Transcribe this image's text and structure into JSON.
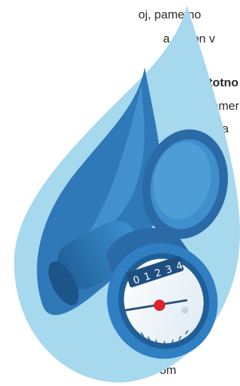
{
  "text_fragments": {
    "line1": "oj,  pametno",
    "line2": "a  zagon  v",
    "line3": "stotno",
    "line4": "emer",
    "line5": "za",
    "line6": "o",
    "line7": "om"
  },
  "meter": {
    "digits": [
      "0",
      "1",
      "2",
      "3",
      "4"
    ]
  },
  "colors": {
    "drop_light": "#a6d8ee",
    "drop_mid": "#3b8fc8",
    "drop_dark": "#2a6aa6",
    "meter_blue": "#2f7fc2",
    "needle_red": "#e0202a"
  }
}
